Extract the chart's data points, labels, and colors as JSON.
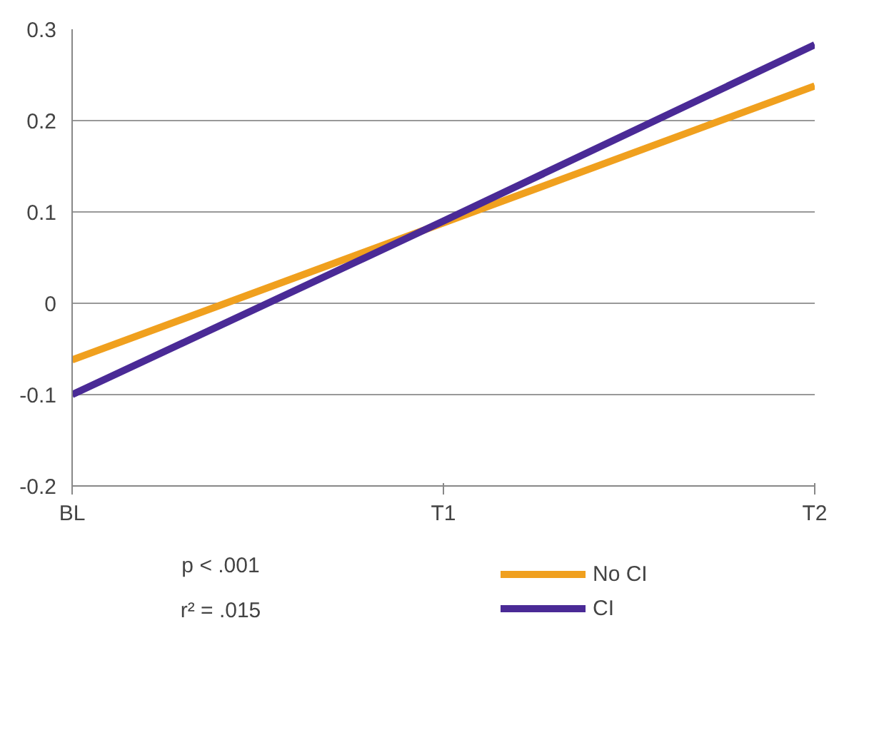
{
  "chart_data": {
    "type": "line",
    "categories": [
      "BL",
      "T1",
      "T2"
    ],
    "series": [
      {
        "name": "No CI",
        "color": "#f0a01e",
        "values": [
          -0.062,
          0.088,
          0.238
        ]
      },
      {
        "name": "CI",
        "color": "#4a2a96",
        "values": [
          -0.1,
          0.09,
          0.283
        ]
      }
    ],
    "ylim": [
      -0.2,
      0.3
    ],
    "yticks": [
      {
        "value": -0.2,
        "label": "-0.2"
      },
      {
        "value": -0.1,
        "label": "-0.1"
      },
      0,
      {
        "value": 0.1,
        "label": "0.1"
      },
      {
        "value": 0.2,
        "label": "0.2"
      },
      {
        "value": 0.3,
        "label": "0.3"
      }
    ],
    "grid": "y",
    "legend": "bottom",
    "marker": "none",
    "line_style": "solid",
    "annotations": [
      "p < .001",
      "r² = .015"
    ]
  }
}
